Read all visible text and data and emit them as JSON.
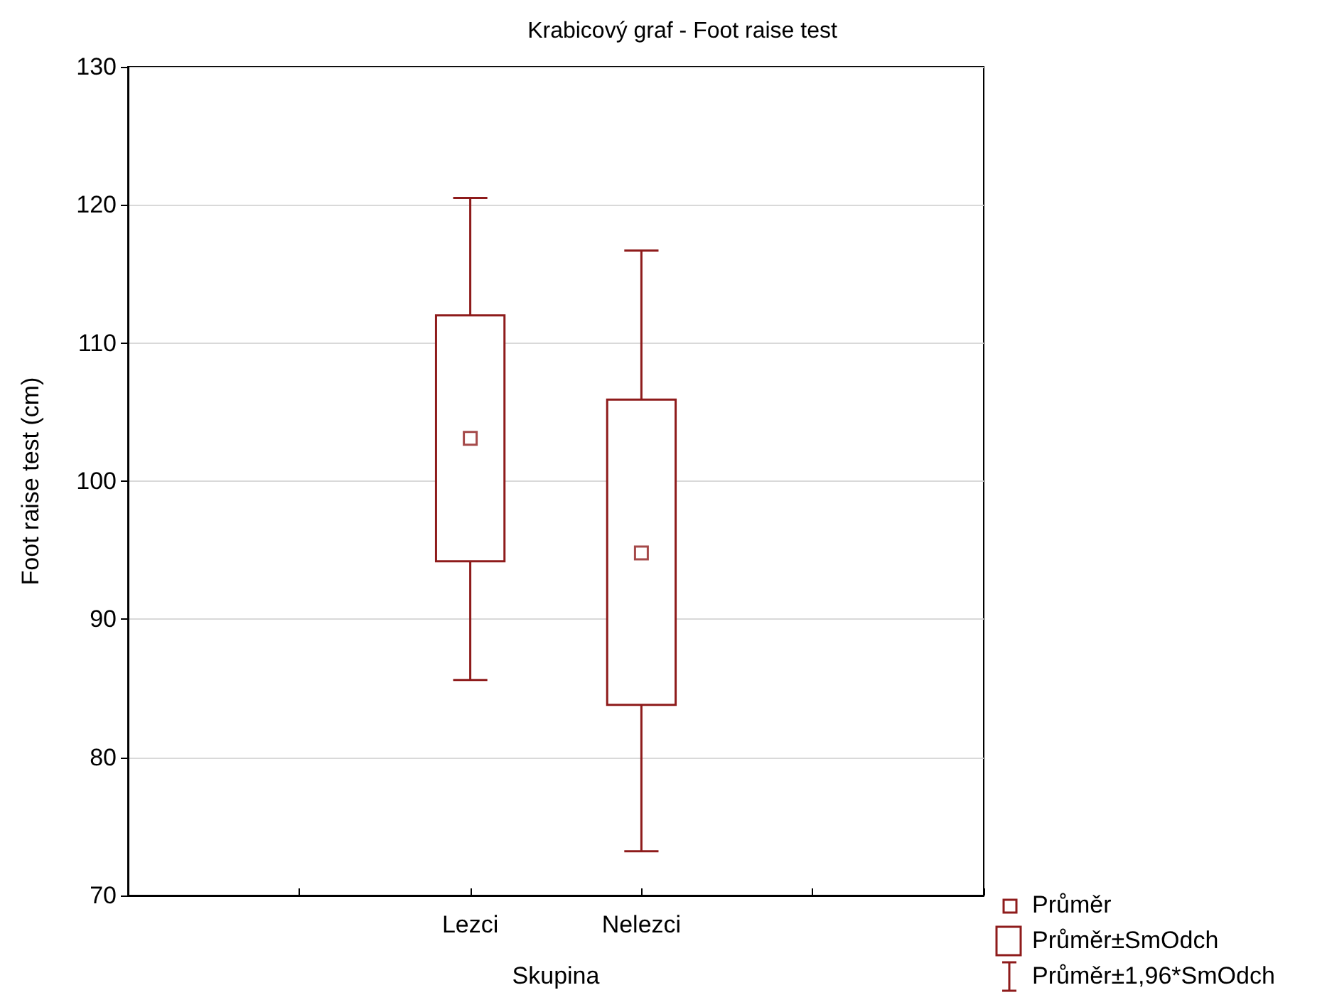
{
  "chart_data": {
    "type": "box",
    "title": "Krabicový graf - Foot raise test",
    "xlabel": "Skupina",
    "ylabel": "Foot raise test (cm)",
    "categories": [
      null,
      null,
      "Lezci",
      "Nelezci",
      null,
      null
    ],
    "boxes": [
      null,
      null,
      {
        "low": 85.6,
        "q1": 94.2,
        "q3": 112,
        "high": 120.5,
        "mean": 103.1
      },
      {
        "low": 73.2,
        "q1": 83.8,
        "q3": 105.9,
        "high": 116.7,
        "mean": 94.8
      },
      null,
      null
    ],
    "color": "#8e1b1b",
    "marker": "square",
    "grid": "y",
    "ylim": [
      70,
      130
    ],
    "yticks": [
      70,
      80,
      90,
      100,
      110,
      120,
      130
    ],
    "annotations": [
      "Průměr",
      "Průměr±SmOdch",
      "Průměr±1,96*SmOdch"
    ]
  }
}
